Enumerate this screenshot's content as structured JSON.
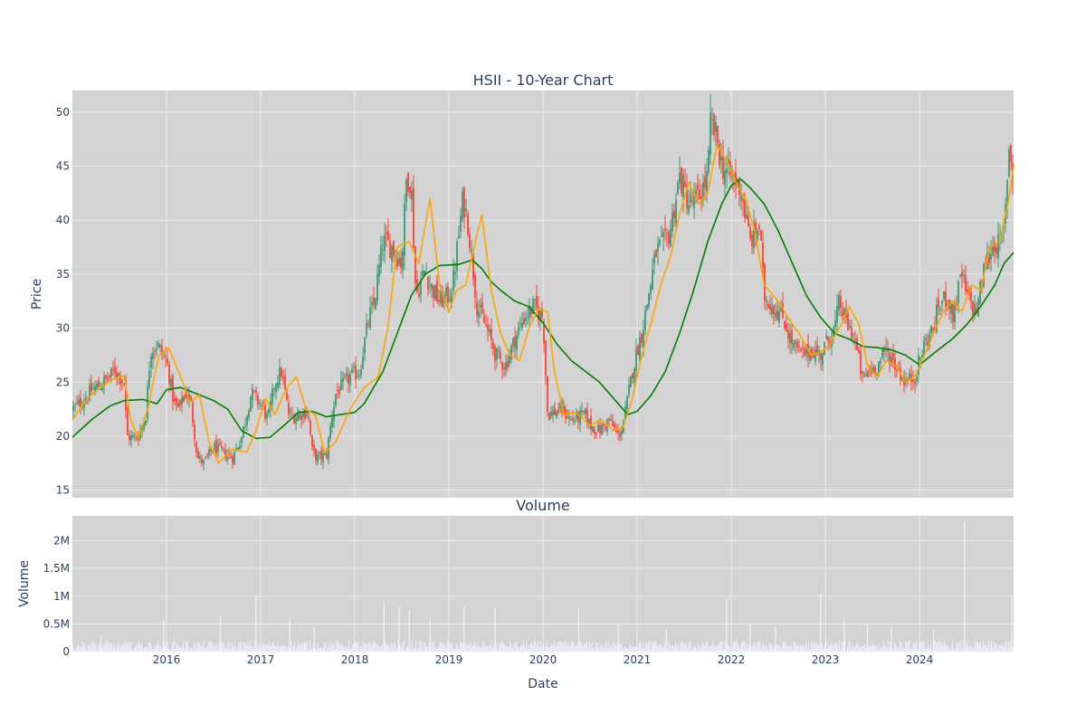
{
  "chart_data": [
    {
      "type": "candlestick",
      "title": "HSII - 10-Year Chart",
      "ylabel": "Price",
      "ylim": [
        14.3,
        52
      ],
      "xlim": [
        2015.0,
        2025.0
      ],
      "y_ticks": [
        "15",
        "20",
        "25",
        "30",
        "35",
        "40",
        "45",
        "50"
      ],
      "x_ticks": [
        "2016",
        "2017",
        "2018",
        "2019",
        "2020",
        "2021",
        "2022",
        "2023",
        "2024"
      ],
      "grid": true,
      "legend": "none",
      "colors": {
        "increasing": "#3d9970",
        "decreasing": "#ff4136",
        "ma_short": "#ffa500",
        "ma_long": "#008000",
        "plot_bg": "#d3d3d3"
      },
      "close_series": {
        "x": [
          2015.0,
          2015.1,
          2015.2,
          2015.3,
          2015.4,
          2015.45,
          2015.55,
          2015.58,
          2015.65,
          2015.7,
          2015.78,
          2015.83,
          2015.9,
          2016.0,
          2016.08,
          2016.13,
          2016.2,
          2016.25,
          2016.33,
          2016.4,
          2016.5,
          2016.6,
          2016.7,
          2016.8,
          2016.9,
          2017.0,
          2017.08,
          2017.15,
          2017.22,
          2017.3,
          2017.35,
          2017.4,
          2017.5,
          2017.55,
          2017.6,
          2017.7,
          2017.75,
          2017.8,
          2017.85,
          2017.95,
          2018.05,
          2018.15,
          2018.2,
          2018.3,
          2018.4,
          2018.5,
          2018.55,
          2018.6,
          2018.65,
          2018.75,
          2018.8,
          2018.9,
          2019.0,
          2019.05,
          2019.15,
          2019.2,
          2019.3,
          2019.4,
          2019.5,
          2019.6,
          2019.7,
          2019.8,
          2019.9,
          2020.0,
          2020.05,
          2020.2,
          2020.3,
          2020.45,
          2020.5,
          2020.6,
          2020.7,
          2020.8,
          2020.85,
          2020.95,
          2021.0,
          2021.05,
          2021.1,
          2021.2,
          2021.3,
          2021.35,
          2021.45,
          2021.55,
          2021.65,
          2021.75,
          2021.78,
          2021.85,
          2021.9,
          2022.0,
          2022.1,
          2022.2,
          2022.3,
          2022.35,
          2022.45,
          2022.55,
          2022.65,
          2022.75,
          2022.85,
          2022.95,
          2023.0,
          2023.1,
          2023.15,
          2023.2,
          2023.25,
          2023.3,
          2023.4,
          2023.45,
          2023.55,
          2023.65,
          2023.75,
          2023.85,
          2023.95,
          2024.05,
          2024.15,
          2024.2,
          2024.3,
          2024.35,
          2024.45,
          2024.5,
          2024.6,
          2024.7,
          2024.8,
          2024.85,
          2024.9,
          2024.95,
          2025.0
        ],
        "y": [
          22.5,
          23.2,
          24.2,
          24.8,
          25.5,
          26.2,
          25.0,
          20.0,
          19.8,
          20.0,
          22.0,
          28.0,
          28.5,
          27.0,
          23.0,
          22.5,
          24.0,
          23.5,
          18.0,
          17.5,
          19.0,
          18.5,
          18.0,
          20.0,
          24.0,
          23.0,
          21.5,
          25.0,
          26.0,
          22.0,
          21.8,
          22.0,
          22.3,
          18.5,
          18.0,
          18.2,
          21.5,
          24.0,
          24.5,
          25.5,
          26.0,
          31.0,
          32.0,
          38.0,
          37.5,
          36.0,
          44.0,
          43.5,
          33.0,
          35.5,
          34.0,
          32.5,
          33.0,
          34.5,
          42.0,
          40.0,
          32.0,
          30.0,
          27.5,
          26.5,
          29.0,
          31.0,
          32.0,
          31.0,
          22.0,
          22.5,
          21.5,
          22.0,
          21.0,
          20.5,
          21.5,
          20.0,
          21.0,
          26.0,
          28.0,
          29.5,
          32.0,
          37.0,
          38.0,
          39.0,
          44.0,
          41.5,
          42.0,
          44.0,
          49.0,
          47.5,
          45.0,
          44.0,
          43.0,
          38.0,
          39.5,
          33.0,
          32.0,
          31.0,
          28.5,
          27.5,
          28.0,
          27.5,
          28.5,
          30.0,
          32.5,
          31.0,
          30.0,
          29.5,
          25.0,
          26.0,
          26.5,
          28.0,
          26.5,
          25.0,
          25.5,
          28.5,
          30.0,
          32.0,
          33.0,
          31.0,
          35.0,
          33.0,
          31.5,
          36.0,
          38.0,
          37.5,
          39.0,
          47.0,
          44.0
        ]
      },
      "ma_short": {
        "x": [
          2015.0,
          2015.1,
          2015.2,
          2015.3,
          2015.42,
          2015.55,
          2015.62,
          2015.7,
          2015.8,
          2015.92,
          2016.02,
          2016.15,
          2016.25,
          2016.35,
          2016.45,
          2016.55,
          2016.7,
          2016.85,
          2016.95,
          2017.05,
          2017.15,
          2017.28,
          2017.38,
          2017.48,
          2017.58,
          2017.68,
          2017.8,
          2017.95,
          2018.1,
          2018.25,
          2018.35,
          2018.45,
          2018.58,
          2018.68,
          2018.8,
          2018.9,
          2019.0,
          2019.08,
          2019.18,
          2019.28,
          2019.35,
          2019.45,
          2019.55,
          2019.65,
          2019.75,
          2019.85,
          2019.95,
          2020.05,
          2020.12,
          2020.22,
          2020.35,
          2020.5,
          2020.62,
          2020.75,
          2020.85,
          2020.95,
          2021.05,
          2021.15,
          2021.25,
          2021.35,
          2021.45,
          2021.55,
          2021.65,
          2021.75,
          2021.85,
          2021.95,
          2022.05,
          2022.15,
          2022.25,
          2022.35,
          2022.5,
          2022.6,
          2022.72,
          2022.85,
          2022.95,
          2023.05,
          2023.15,
          2023.25,
          2023.35,
          2023.45,
          2023.55,
          2023.65,
          2023.75,
          2023.85,
          2023.95,
          2024.05,
          2024.15,
          2024.25,
          2024.35,
          2024.45,
          2024.55,
          2024.65,
          2024.75,
          2024.85,
          2024.95,
          2025.0
        ],
        "y": [
          21.5,
          22.8,
          23.8,
          24.5,
          25.2,
          25.6,
          21.5,
          19.8,
          22.5,
          27.5,
          28.2,
          25.5,
          23.2,
          23.8,
          19.5,
          17.5,
          18.8,
          18.5,
          20.5,
          23.5,
          22.0,
          24.5,
          25.5,
          22.5,
          22.0,
          18.5,
          19.5,
          22.5,
          24.5,
          25.5,
          30.0,
          37.5,
          38.0,
          36.0,
          42.0,
          34.0,
          31.5,
          33.5,
          34.0,
          38.0,
          40.5,
          33.5,
          29.5,
          27.5,
          27.0,
          30.0,
          31.8,
          31.5,
          26.0,
          22.0,
          22.2,
          21.0,
          21.5,
          20.5,
          20.8,
          23.5,
          27.5,
          30.5,
          34.0,
          36.5,
          40.5,
          43.5,
          41.5,
          42.5,
          47.0,
          45.5,
          43.5,
          42.0,
          39.0,
          34.0,
          32.5,
          31.0,
          29.5,
          27.5,
          27.8,
          28.5,
          30.0,
          32.0,
          30.5,
          26.5,
          25.5,
          27.0,
          26.5,
          25.0,
          25.5,
          27.5,
          29.5,
          31.5,
          32.5,
          31.5,
          34.0,
          33.5,
          37.5,
          38.0,
          42.0,
          45.0
        ]
      },
      "ma_long": {
        "x": [
          2015.0,
          2015.2,
          2015.4,
          2015.55,
          2015.75,
          2015.9,
          2016.0,
          2016.15,
          2016.3,
          2016.5,
          2016.65,
          2016.8,
          2016.95,
          2017.1,
          2017.25,
          2017.4,
          2017.55,
          2017.7,
          2017.85,
          2018.0,
          2018.1,
          2018.2,
          2018.3,
          2018.45,
          2018.6,
          2018.75,
          2018.9,
          2019.1,
          2019.25,
          2019.35,
          2019.45,
          2019.55,
          2019.7,
          2019.85,
          2020.0,
          2020.15,
          2020.3,
          2020.45,
          2020.6,
          2020.75,
          2020.9,
          2021.0,
          2021.15,
          2021.3,
          2021.45,
          2021.6,
          2021.75,
          2021.9,
          2022.0,
          2022.1,
          2022.2,
          2022.35,
          2022.5,
          2022.65,
          2022.8,
          2022.95,
          2023.1,
          2023.25,
          2023.4,
          2023.55,
          2023.7,
          2023.85,
          2024.0,
          2024.1,
          2024.2,
          2024.35,
          2024.5,
          2024.65,
          2024.8,
          2024.9,
          2025.0
        ],
        "y": [
          19.9,
          21.5,
          22.8,
          23.3,
          23.4,
          23.0,
          24.3,
          24.5,
          24.0,
          23.3,
          22.5,
          20.5,
          19.8,
          19.9,
          21.0,
          22.2,
          22.3,
          21.8,
          22.0,
          22.2,
          23.0,
          24.5,
          26.0,
          29.5,
          33.0,
          35.0,
          35.8,
          35.9,
          36.3,
          35.5,
          34.3,
          33.5,
          32.5,
          32.0,
          30.5,
          28.5,
          27.0,
          26.0,
          25.0,
          23.5,
          22.0,
          22.3,
          23.8,
          26.0,
          29.5,
          33.5,
          38.0,
          41.5,
          43.2,
          43.8,
          43.0,
          41.5,
          39.0,
          36.0,
          33.0,
          31.0,
          29.5,
          29.0,
          28.3,
          28.2,
          28.0,
          27.5,
          26.6,
          27.3,
          28.0,
          29.0,
          30.3,
          32.0,
          34.0,
          36.0,
          37.0
        ]
      }
    },
    {
      "type": "bar",
      "title": "Volume",
      "xlabel": "Date",
      "ylabel": "Volume",
      "ylim": [
        0,
        2450000
      ],
      "y_ticks": [
        "0",
        "0.5M",
        "1M",
        "1.5M",
        "2M"
      ],
      "x_ticks": [
        "2016",
        "2017",
        "2018",
        "2019",
        "2020",
        "2021",
        "2022",
        "2023",
        "2024"
      ],
      "grid": true,
      "colors": {
        "bar": "#f2f2ff",
        "plot_bg": "#d3d3d3"
      },
      "spikes": {
        "x": [
          2015.3,
          2015.97,
          2016.57,
          2016.95,
          2017.31,
          2017.57,
          2018.31,
          2018.47,
          2018.58,
          2018.8,
          2019.16,
          2019.49,
          2020.38,
          2020.8,
          2021.31,
          2021.95,
          2022.2,
          2022.47,
          2022.95,
          2023.2,
          2023.45,
          2023.7,
          2024.15,
          2024.48,
          2024.98
        ],
        "values": [
          300000,
          550000,
          650000,
          1000000,
          600000,
          450000,
          900000,
          800000,
          750000,
          600000,
          800000,
          800000,
          780000,
          500000,
          400000,
          950000,
          500000,
          450000,
          1050000,
          600000,
          500000,
          450000,
          400000,
          2350000,
          980000
        ]
      }
    }
  ]
}
